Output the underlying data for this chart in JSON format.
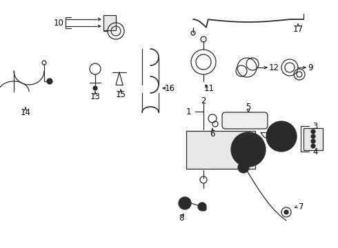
{
  "background_color": "#ffffff",
  "fig_width": 4.9,
  "fig_height": 3.6,
  "dpi": 100,
  "line_color": "#2a2a2a",
  "label_fontsize": 8.5
}
